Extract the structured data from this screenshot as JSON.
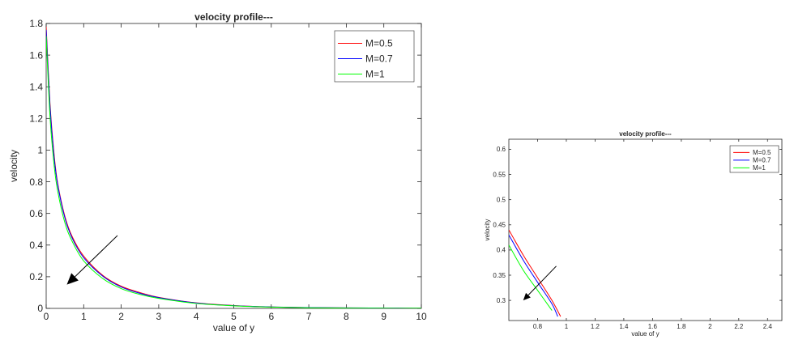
{
  "chart_data": [
    {
      "type": "line",
      "title": "velocity profile---",
      "xlabel": "value of y",
      "ylabel": "velocity",
      "xlim": [
        0,
        10
      ],
      "ylim": [
        0,
        1.8
      ],
      "xticks": [
        0,
        1,
        2,
        3,
        4,
        5,
        6,
        7,
        8,
        9,
        10
      ],
      "yticks": [
        0,
        0.2,
        0.4,
        0.6,
        0.8,
        1,
        1.2,
        1.4,
        1.6,
        1.8
      ],
      "xtick_labels": [
        "0",
        "1",
        "2",
        "3",
        "4",
        "5",
        "6",
        "7",
        "8",
        "9",
        "10"
      ],
      "ytick_labels": [
        "0",
        "0.2",
        "0.4",
        "0.6",
        "0.8",
        "1",
        "1.2",
        "1.4",
        "1.6",
        "1.8"
      ],
      "legend_position": "top-right",
      "grid": false,
      "series": [
        {
          "name": "M=0.5",
          "color": "#ff0000",
          "x": [
            0,
            0.1,
            0.2,
            0.3,
            0.5,
            0.7,
            1,
            1.5,
            2,
            2.5,
            3,
            4,
            5,
            6,
            7,
            8,
            9,
            10
          ],
          "y": [
            1.78,
            1.3,
            1.0,
            0.8,
            0.58,
            0.45,
            0.33,
            0.21,
            0.14,
            0.1,
            0.07,
            0.035,
            0.018,
            0.009,
            0.005,
            0.003,
            0.002,
            0.001
          ]
        },
        {
          "name": "M=0.7",
          "color": "#0000ff",
          "x": [
            0,
            0.1,
            0.2,
            0.3,
            0.5,
            0.7,
            1,
            1.5,
            2,
            2.5,
            3,
            4,
            5,
            6,
            7,
            8,
            9,
            10
          ],
          "y": [
            1.76,
            1.28,
            0.98,
            0.79,
            0.57,
            0.44,
            0.32,
            0.205,
            0.135,
            0.095,
            0.068,
            0.034,
            0.017,
            0.009,
            0.005,
            0.003,
            0.002,
            0.001
          ]
        },
        {
          "name": "M=1",
          "color": "#00ff00",
          "x": [
            0,
            0.1,
            0.2,
            0.3,
            0.5,
            0.7,
            1,
            1.5,
            2,
            2.5,
            3,
            4,
            5,
            6,
            7,
            8,
            9,
            10
          ],
          "y": [
            1.72,
            1.22,
            0.93,
            0.75,
            0.54,
            0.42,
            0.3,
            0.19,
            0.125,
            0.088,
            0.063,
            0.031,
            0.016,
            0.008,
            0.004,
            0.002,
            0.001,
            0.001
          ]
        }
      ],
      "annotations": [
        {
          "type": "arrow",
          "from": [
            1.9,
            0.46
          ],
          "to": [
            0.55,
            0.15
          ]
        }
      ]
    },
    {
      "type": "line",
      "title": "velocity profile---",
      "xlabel": "value of y",
      "ylabel": "velocity",
      "xlim": [
        0.6,
        2.5
      ],
      "ylim": [
        0.26,
        0.62
      ],
      "xticks": [
        0.8,
        1,
        1.2,
        1.4,
        1.6,
        1.8,
        2,
        2.2,
        2.4
      ],
      "yticks": [
        0.3,
        0.35,
        0.4,
        0.45,
        0.5,
        0.55,
        0.6
      ],
      "xtick_labels": [
        "0.8",
        "1",
        "1.2",
        "1.4",
        "1.6",
        "1.8",
        "2",
        "2.2",
        "2.4"
      ],
      "ytick_labels": [
        "0.3",
        "0.35",
        "0.4",
        "0.45",
        "0.5",
        "0.55",
        "0.6"
      ],
      "legend_position": "top-right",
      "grid": false,
      "series": [
        {
          "name": "M=0.5",
          "color": "#ff0000",
          "x": [
            0.6,
            0.7,
            0.8,
            0.9,
            0.96
          ],
          "y": [
            0.44,
            0.39,
            0.345,
            0.3,
            0.268
          ]
        },
        {
          "name": "M=0.7",
          "color": "#0000ff",
          "x": [
            0.6,
            0.7,
            0.8,
            0.9,
            0.94
          ],
          "y": [
            0.43,
            0.38,
            0.336,
            0.293,
            0.268
          ]
        },
        {
          "name": "M=1",
          "color": "#00ff00",
          "x": [
            0.6,
            0.7,
            0.8,
            0.9
          ],
          "y": [
            0.41,
            0.36,
            0.32,
            0.28
          ]
        }
      ],
      "annotations": [
        {
          "type": "arrow",
          "from": [
            0.93,
            0.368
          ],
          "to": [
            0.7,
            0.3
          ]
        }
      ]
    }
  ]
}
